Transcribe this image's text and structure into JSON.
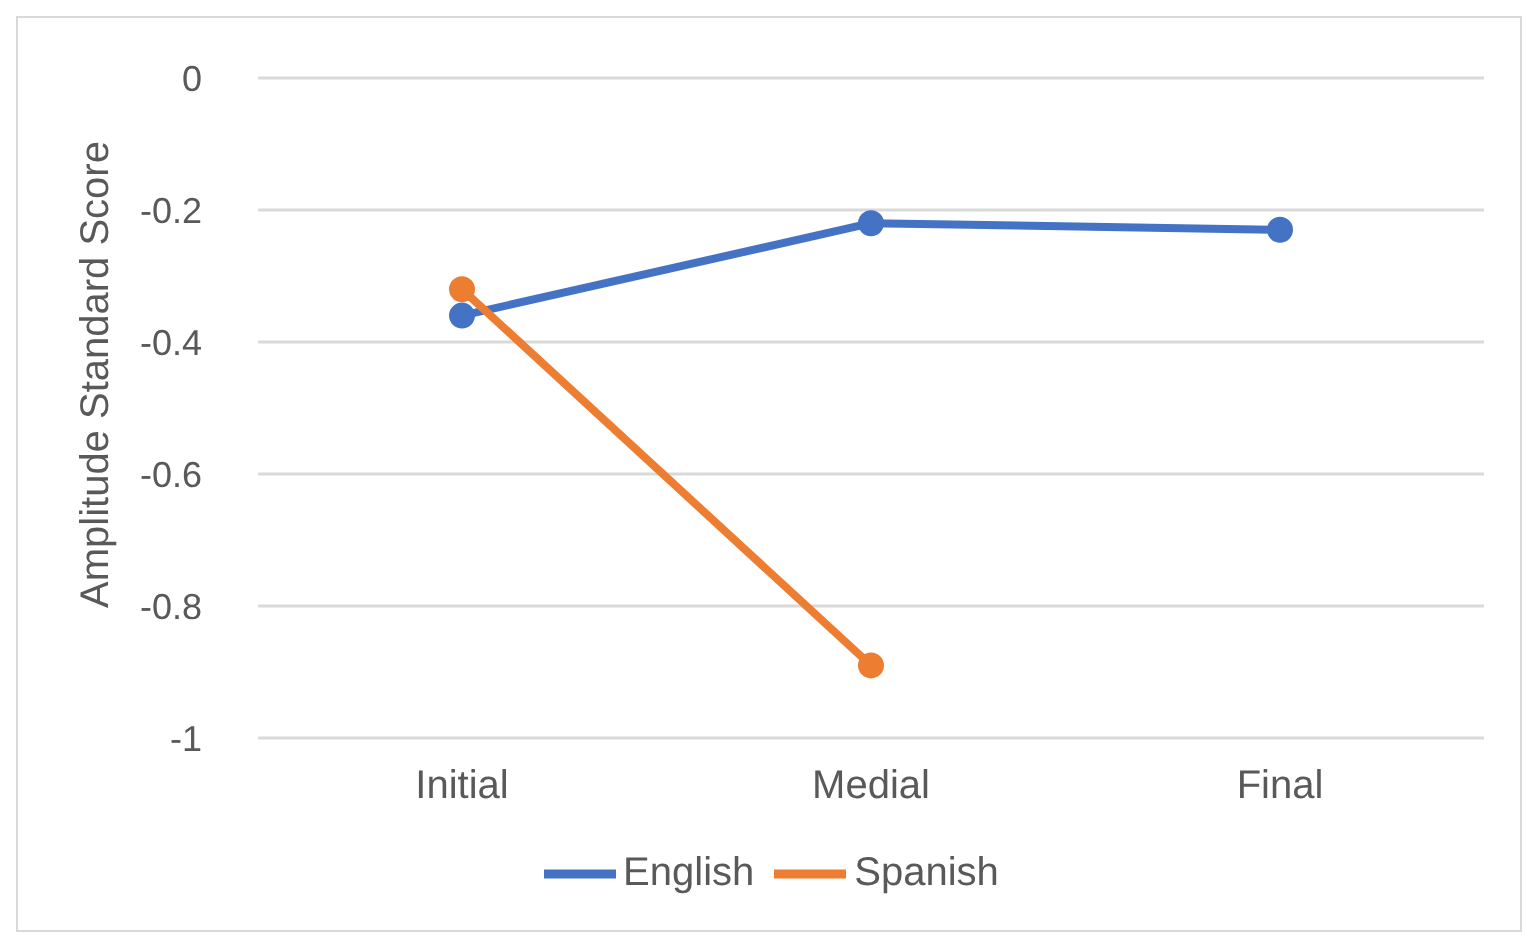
{
  "chart_data": {
    "type": "line",
    "ylabel": "Amplitude Standard Score",
    "categories": [
      "Initial",
      "Medial",
      "Final"
    ],
    "series": [
      {
        "name": "English",
        "color": "#4472c4",
        "values": [
          -0.36,
          -0.22,
          -0.23
        ]
      },
      {
        "name": "Spanish",
        "color": "#ed7d31",
        "values": [
          -0.32,
          -0.89,
          null
        ]
      }
    ],
    "ylim": [
      -1,
      0
    ],
    "yticks": [
      0,
      -0.2,
      -0.4,
      -0.6,
      -0.8,
      -1
    ],
    "grid": "y",
    "legend": "bottom",
    "marker": "circle",
    "line_style": "solid"
  }
}
